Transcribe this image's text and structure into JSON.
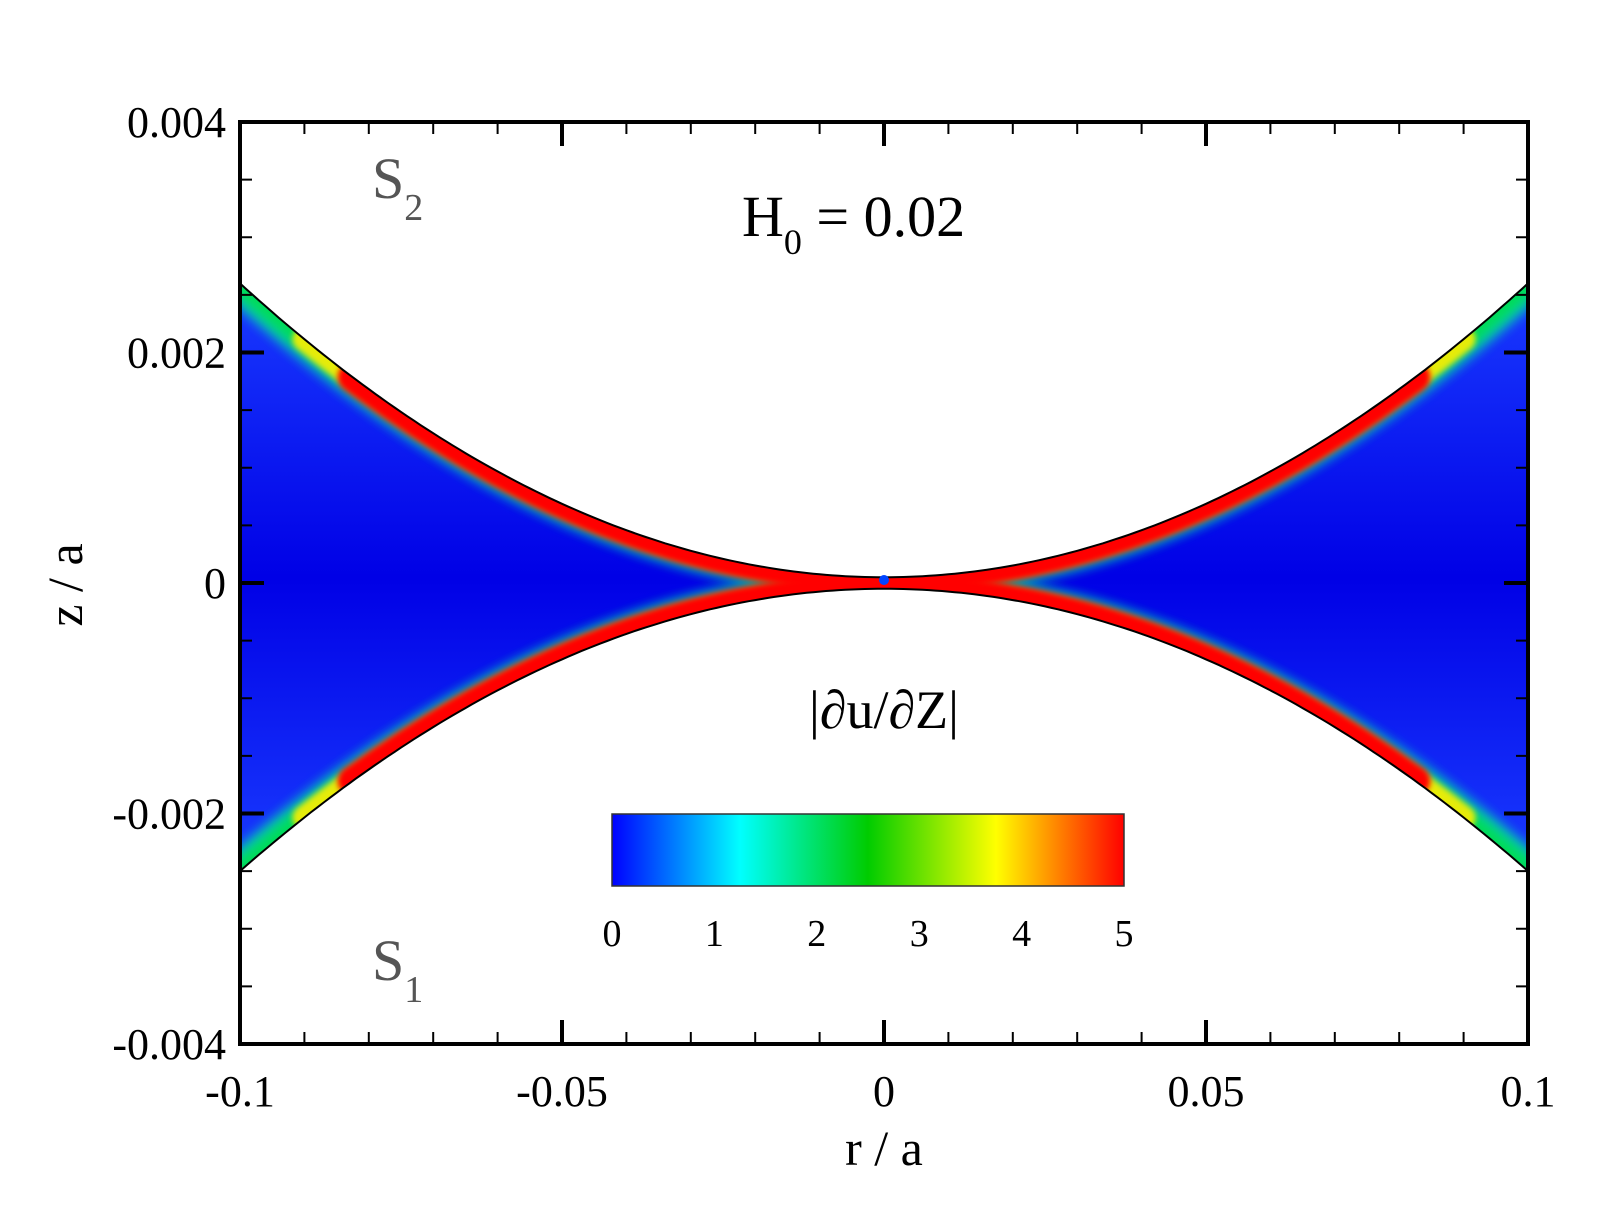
{
  "chart_data": {
    "type": "heatmap",
    "xlabel": "r / a",
    "ylabel": "z / a",
    "xlim": [
      -0.1,
      0.1
    ],
    "ylim": [
      -0.004,
      0.004
    ],
    "x_major_ticks": [
      -0.1,
      -0.05,
      0,
      0.05,
      0.1
    ],
    "x_tick_labels": [
      "-0.1",
      "-0.05",
      "0",
      "0.05",
      "0.1"
    ],
    "y_major_ticks": [
      -0.004,
      -0.002,
      0,
      0.002,
      0.004
    ],
    "y_tick_labels": [
      "-0.004",
      "-0.002",
      "0",
      "0.002",
      "0.004"
    ],
    "annotation": {
      "main": "H",
      "sub": "0",
      "rest": " = 0.02"
    },
    "field_label": "|∂u/∂Z|",
    "surfaces": [
      {
        "main": "S",
        "sub": "2"
      },
      {
        "main": "S",
        "sub": "1"
      }
    ],
    "gap_profile": {
      "upper_center": 5e-05,
      "upper_edge": 0.0026,
      "lower_center": -5e-05,
      "lower_edge": -0.0025
    },
    "colorbar": {
      "min": 0,
      "max": 5,
      "ticks": [
        0,
        1,
        2,
        3,
        4,
        5
      ],
      "tick_labels": [
        "0",
        "1",
        "2",
        "3",
        "4",
        "5"
      ],
      "colors": [
        "#0000ff",
        "#00ffff",
        "#00cc00",
        "#ffff00",
        "#ff0000"
      ]
    },
    "grid": false
  }
}
